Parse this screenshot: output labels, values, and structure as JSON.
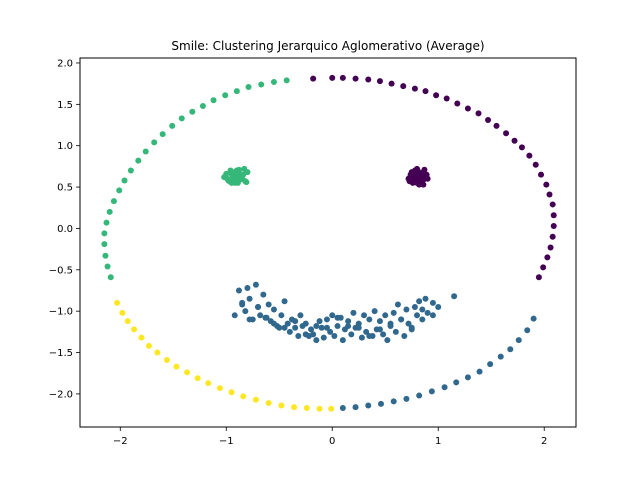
{
  "chart_data": {
    "type": "scatter",
    "title": "Smile: Clustering Jerarquico Aglomerativo (Average)",
    "xlabel": "",
    "ylabel": "",
    "xlim": [
      -2.38,
      2.3
    ],
    "ylim": [
      -2.4,
      2.06
    ],
    "xticks": [
      -2,
      -1,
      0,
      1,
      2
    ],
    "xtick_labels": [
      "−2",
      "−1",
      "0",
      "1",
      "2"
    ],
    "yticks": [
      -2.0,
      -1.5,
      -1.0,
      -0.5,
      0.0,
      0.5,
      1.0,
      1.5,
      2.0
    ],
    "ytick_labels": [
      "−2.0",
      "−1.5",
      "−1.0",
      "−0.5",
      "0.0",
      "0.5",
      "1.0",
      "1.5",
      "2.0"
    ],
    "grid": false,
    "legend": "none",
    "cluster_colors": {
      "purple": "#440154",
      "blue": "#31688e",
      "green": "#35b779",
      "yellow": "#fde725"
    },
    "series": [
      {
        "name": "cluster-purple",
        "color": "#440154",
        "x": [
          -0.18,
          0.0,
          0.1,
          0.22,
          0.34,
          0.45,
          0.56,
          0.67,
          0.78,
          0.88,
          0.98,
          1.08,
          1.18,
          1.28,
          1.38,
          1.47,
          1.55,
          1.64,
          1.72,
          1.79,
          1.86,
          1.92,
          1.97,
          2.02,
          2.05,
          2.08,
          2.09,
          2.09,
          2.08,
          2.06,
          2.03,
          1.99,
          1.95,
          0.72,
          0.74,
          0.76,
          0.78,
          0.8,
          0.82,
          0.84,
          0.86,
          0.88,
          0.9,
          0.73,
          0.77,
          0.81,
          0.85,
          0.89,
          0.75,
          0.79,
          0.83,
          0.87,
          0.8,
          0.76,
          0.84,
          0.78,
          0.82,
          0.86,
          0.74,
          0.8
        ],
        "y": [
          1.81,
          1.82,
          1.82,
          1.81,
          1.8,
          1.78,
          1.75,
          1.72,
          1.69,
          1.66,
          1.61,
          1.57,
          1.51,
          1.45,
          1.39,
          1.31,
          1.24,
          1.15,
          1.06,
          0.98,
          0.88,
          0.77,
          0.65,
          0.53,
          0.41,
          0.29,
          0.16,
          0.03,
          -0.1,
          -0.23,
          -0.35,
          -0.47,
          -0.59,
          0.6,
          0.65,
          0.55,
          0.7,
          0.62,
          0.58,
          0.67,
          0.53,
          0.63,
          0.6,
          0.57,
          0.62,
          0.69,
          0.57,
          0.65,
          0.68,
          0.59,
          0.64,
          0.71,
          0.55,
          0.6,
          0.62,
          0.66,
          0.53,
          0.59,
          0.64,
          0.72
        ]
      },
      {
        "name": "cluster-blue",
        "color": "#31688e",
        "x": [
          0.1,
          0.22,
          0.34,
          0.46,
          0.58,
          0.7,
          0.82,
          0.94,
          1.06,
          1.17,
          1.28,
          1.39,
          1.49,
          1.59,
          1.68,
          1.76,
          1.84,
          1.9,
          -0.92,
          -0.88,
          -0.85,
          -0.82,
          -0.8,
          -0.78,
          -0.75,
          -0.72,
          -0.7,
          -0.68,
          -0.65,
          -0.63,
          -0.6,
          -0.58,
          -0.55,
          -0.52,
          -0.5,
          -0.48,
          -0.45,
          -0.42,
          -0.4,
          -0.38,
          -0.35,
          -0.32,
          -0.3,
          -0.28,
          -0.25,
          -0.22,
          -0.2,
          -0.18,
          -0.15,
          -0.12,
          -0.1,
          -0.08,
          -0.05,
          -0.02,
          0.0,
          0.02,
          0.05,
          0.08,
          0.1,
          0.12,
          0.15,
          0.18,
          0.2,
          0.22,
          0.25,
          0.28,
          0.3,
          0.32,
          0.35,
          0.38,
          0.4,
          0.42,
          0.45,
          0.48,
          0.5,
          0.52,
          0.55,
          0.58,
          0.6,
          0.62,
          0.65,
          0.68,
          0.7,
          0.72,
          0.75,
          0.78,
          0.8,
          0.82,
          0.85,
          0.88,
          0.9,
          0.95,
          1.0,
          1.15,
          -0.85,
          -0.78,
          -0.7,
          -0.62,
          -0.55,
          -0.45,
          -0.35,
          -0.25,
          -0.15,
          -0.05,
          0.05,
          0.15,
          0.25,
          0.35,
          0.45,
          0.55,
          0.65,
          0.75,
          0.85,
          0.95
        ],
        "y": [
          -2.17,
          -2.16,
          -2.14,
          -2.12,
          -2.09,
          -2.06,
          -2.02,
          -1.97,
          -1.92,
          -1.86,
          -1.8,
          -1.73,
          -1.64,
          -1.55,
          -1.46,
          -1.35,
          -1.23,
          -1.09,
          -1.05,
          -0.75,
          -0.9,
          -1.0,
          -0.72,
          -0.85,
          -1.1,
          -0.68,
          -0.95,
          -1.05,
          -0.8,
          -1.08,
          -0.92,
          -1.12,
          -0.98,
          -1.18,
          -1.2,
          -1.05,
          -0.88,
          -1.15,
          -1.25,
          -1.1,
          -1.2,
          -1.3,
          -1.05,
          -1.18,
          -1.15,
          -1.3,
          -1.22,
          -1.28,
          -1.35,
          -1.12,
          -1.2,
          -1.32,
          -1.1,
          -1.25,
          -1.05,
          -1.3,
          -1.18,
          -1.08,
          -1.35,
          -1.22,
          -1.12,
          -1.28,
          -1.02,
          -1.2,
          -1.15,
          -1.32,
          -1.05,
          -1.25,
          -1.1,
          -1.3,
          -1.0,
          -1.22,
          -1.12,
          -1.28,
          -1.05,
          -1.35,
          -1.18,
          -1.02,
          -1.25,
          -0.92,
          -1.1,
          -1.3,
          -0.98,
          -1.15,
          -1.22,
          -0.95,
          -1.05,
          -0.88,
          -1.1,
          -0.85,
          -1.02,
          -0.9,
          -0.95,
          -0.82,
          -0.92,
          -1.1,
          -0.95,
          -1.08,
          -1.15,
          -1.2,
          -1.12,
          -1.28,
          -1.18,
          -1.2,
          -1.08,
          -1.18,
          -1.2,
          -1.3,
          -1.22,
          -1.15,
          -1.1,
          -1.2,
          -0.98,
          -1.05
        ]
      },
      {
        "name": "cluster-green",
        "color": "#35b779",
        "x": [
          -0.43,
          -0.55,
          -0.67,
          -0.79,
          -0.9,
          -1.01,
          -1.12,
          -1.22,
          -1.32,
          -1.42,
          -1.51,
          -1.6,
          -1.68,
          -1.76,
          -1.83,
          -1.9,
          -1.96,
          -2.01,
          -2.06,
          -2.1,
          -2.13,
          -2.15,
          -2.15,
          -2.14,
          -2.12,
          -2.09,
          -1.02,
          -0.98,
          -0.95,
          -0.92,
          -0.9,
          -0.88,
          -0.85,
          -0.82,
          -0.8,
          -1.0,
          -0.96,
          -0.93,
          -0.89,
          -0.86,
          -0.83,
          -0.97,
          -0.94,
          -0.91,
          -0.87,
          -0.84,
          -0.81,
          -0.99,
          -0.95,
          -0.92,
          -0.88,
          -0.85,
          -0.9,
          -0.93,
          -0.87
        ],
        "y": [
          1.79,
          1.77,
          1.74,
          1.71,
          1.66,
          1.61,
          1.55,
          1.48,
          1.41,
          1.33,
          1.24,
          1.14,
          1.04,
          0.93,
          0.82,
          0.7,
          0.58,
          0.46,
          0.33,
          0.2,
          0.07,
          -0.06,
          -0.19,
          -0.33,
          -0.46,
          -0.59,
          0.62,
          0.58,
          0.66,
          0.55,
          0.7,
          0.6,
          0.64,
          0.57,
          0.68,
          0.66,
          0.7,
          0.6,
          0.55,
          0.62,
          0.72,
          0.57,
          0.63,
          0.67,
          0.59,
          0.65,
          0.56,
          0.6,
          0.55,
          0.68,
          0.71,
          0.6,
          0.63,
          0.58,
          0.66
        ]
      },
      {
        "name": "cluster-yellow",
        "color": "#fde725",
        "x": [
          -2.03,
          -1.98,
          -1.93,
          -1.87,
          -1.8,
          -1.73,
          -1.65,
          -1.56,
          -1.47,
          -1.37,
          -1.27,
          -1.17,
          -1.06,
          -0.95,
          -0.84,
          -0.72,
          -0.6,
          -0.48,
          -0.36,
          -0.24,
          -0.12,
          -0.01
        ],
        "y": [
          -0.9,
          -1.02,
          -1.12,
          -1.22,
          -1.32,
          -1.42,
          -1.5,
          -1.59,
          -1.67,
          -1.74,
          -1.81,
          -1.87,
          -1.93,
          -1.98,
          -2.03,
          -2.07,
          -2.11,
          -2.14,
          -2.16,
          -2.17,
          -2.18,
          -2.18
        ]
      }
    ]
  }
}
